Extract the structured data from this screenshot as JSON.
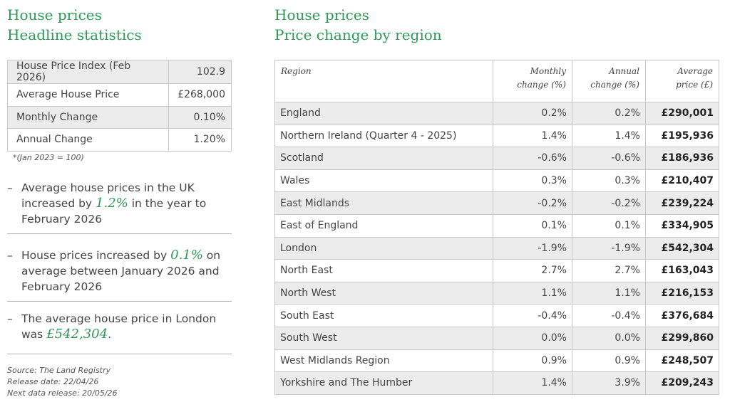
{
  "left": {
    "title_line1": "House prices",
    "title_line2": "Headline statistics",
    "stats": [
      {
        "label": "House Price Index (Feb 2026)",
        "value": "102.9"
      },
      {
        "label": "Average House Price",
        "value": "£268,000"
      },
      {
        "label": "Monthly Change",
        "value": "0.10%"
      },
      {
        "label": "Annual Change",
        "value": "1.20%"
      }
    ],
    "note": "*(Jan 2023 = 100)",
    "bullets": [
      {
        "dash": "–",
        "pre": "Average house prices in the UK increased by ",
        "hl": "1.2%",
        "post": " in the year to February 2026"
      },
      {
        "dash": "–",
        "pre": "House prices increased by ",
        "hl": "0.1%",
        "post": " on average between January 2026 and February 2026"
      },
      {
        "dash": "–",
        "pre": "The average house price in London was ",
        "hl": "£542,304",
        "post": "."
      }
    ],
    "source": "Source: The Land Registry",
    "release": "Release date: 22/04/26",
    "next": "Next data release: 20/05/26"
  },
  "right": {
    "title_line1": "House prices",
    "title_line2": "Price change by region",
    "headers": {
      "region": "Region",
      "monthly_1": "Monthly",
      "monthly_2": "change (%)",
      "annual_1": "Annual",
      "annual_2": "change (%)",
      "price_1": "Average",
      "price_2": "price (£)"
    },
    "rows": [
      {
        "region": "England",
        "monthly": "0.2%",
        "annual": "0.2%",
        "price": "£290,001"
      },
      {
        "region": "Northern Ireland (Quarter 4 - 2025)",
        "monthly": "1.4%",
        "annual": "1.4%",
        "price": "£195,936"
      },
      {
        "region": "Scotland",
        "monthly": "-0.6%",
        "annual": "-0.6%",
        "price": "£186,936"
      },
      {
        "region": "Wales",
        "monthly": "0.3%",
        "annual": "0.3%",
        "price": "£210,407"
      },
      {
        "region": "East Midlands",
        "monthly": "-0.2%",
        "annual": "-0.2%",
        "price": "£239,224"
      },
      {
        "region": "East of England",
        "monthly": "0.1%",
        "annual": "0.1%",
        "price": "£334,905"
      },
      {
        "region": "London",
        "monthly": "-1.9%",
        "annual": "-1.9%",
        "price": "£542,304"
      },
      {
        "region": "North East",
        "monthly": "2.7%",
        "annual": "2.7%",
        "price": "£163,043"
      },
      {
        "region": "North West",
        "monthly": "1.1%",
        "annual": "1.1%",
        "price": "£216,153"
      },
      {
        "region": "South East",
        "monthly": "-0.4%",
        "annual": "-0.4%",
        "price": "£376,684"
      },
      {
        "region": "South West",
        "monthly": "0.0%",
        "annual": "0.0%",
        "price": "£299,860"
      },
      {
        "region": "West Midlands Region",
        "monthly": "0.9%",
        "annual": "0.9%",
        "price": "£248,507"
      },
      {
        "region": "Yorkshire and The Humber",
        "monthly": "1.4%",
        "annual": "3.9%",
        "price": "£209,243"
      }
    ]
  },
  "colors": {
    "accent": "#2f9a58",
    "row_alt": "#ececec"
  }
}
